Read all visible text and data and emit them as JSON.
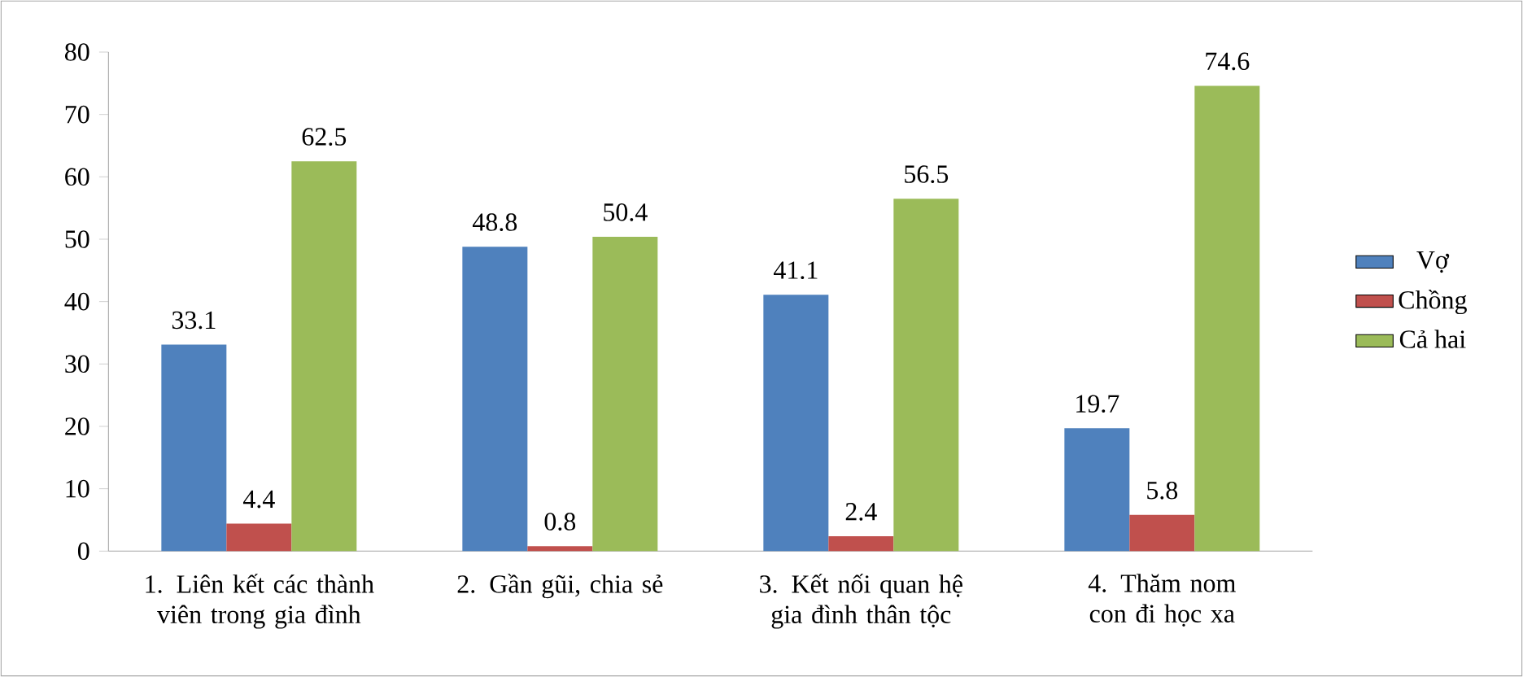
{
  "chart_data": {
    "type": "bar",
    "categories": [
      "1. Liên kết các thành viên trong gia đình",
      "2. Gần gũi, chia sẻ",
      "3. Kết nối quan hệ gia đình thân tộc",
      "4. Thăm nom con đi học xa"
    ],
    "series": [
      {
        "name": "Vợ",
        "color": "#4f81bd",
        "values": [
          33.1,
          48.8,
          41.1,
          19.7
        ]
      },
      {
        "name": "Chồng",
        "color": "#c0504d",
        "values": [
          4.4,
          0.8,
          2.4,
          5.8
        ]
      },
      {
        "name": "Cả hai",
        "color": "#9bbb59",
        "values": [
          62.5,
          50.4,
          56.5,
          74.6
        ]
      }
    ],
    "ylim": [
      0,
      80
    ],
    "yticks": [
      0,
      10,
      20,
      30,
      40,
      50,
      60,
      70,
      80
    ],
    "grid": false,
    "legend": "right",
    "data_labels": true
  }
}
